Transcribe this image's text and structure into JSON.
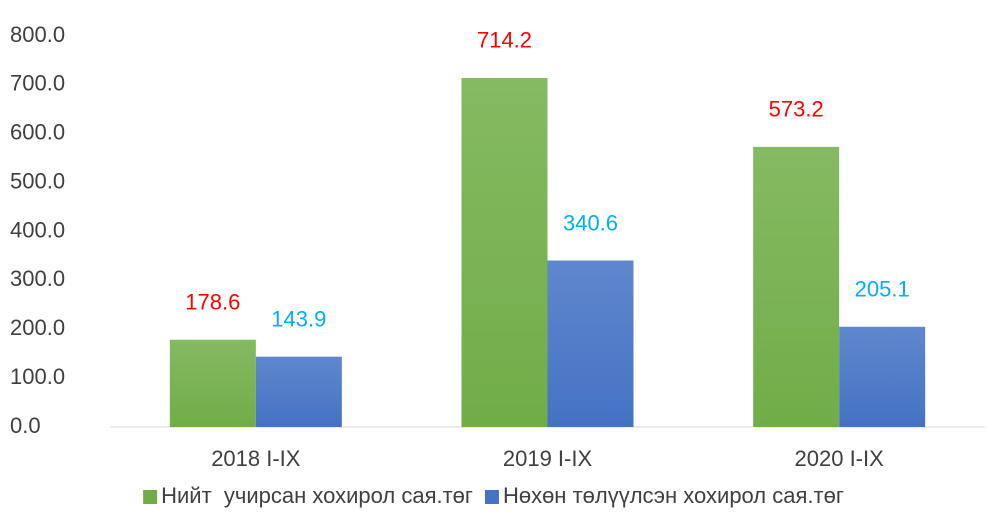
{
  "chart_data": {
    "type": "bar",
    "categories": [
      "2018 I-IX",
      "2019 I-IX",
      "2020 I-IX"
    ],
    "series": [
      {
        "name": "Нийт  учирсан хохирол сая.төг",
        "color": "#70ad47",
        "label_color": "#ff0000",
        "values": [
          178.6,
          714.2,
          573.2
        ]
      },
      {
        "name": "Нөхөн төлүүлсэн хохирол сая.төг",
        "color": "#4472c4",
        "label_color": "#00b0f0",
        "values": [
          143.9,
          340.6,
          205.1
        ]
      }
    ],
    "ylim": [
      0,
      800
    ],
    "yticks": [
      {
        "value": 0,
        "label": "0.0"
      },
      {
        "value": 100,
        "label": "100.0"
      },
      {
        "value": 200,
        "label": "200.0"
      },
      {
        "value": 300,
        "label": "300.0"
      },
      {
        "value": 400,
        "label": "400.0"
      },
      {
        "value": 500,
        "label": "500.0"
      },
      {
        "value": 600,
        "label": "600.0"
      },
      {
        "value": 700,
        "label": "700.0"
      },
      {
        "value": 800,
        "label": "800.0"
      }
    ],
    "grid": false,
    "legend": "bottom"
  }
}
